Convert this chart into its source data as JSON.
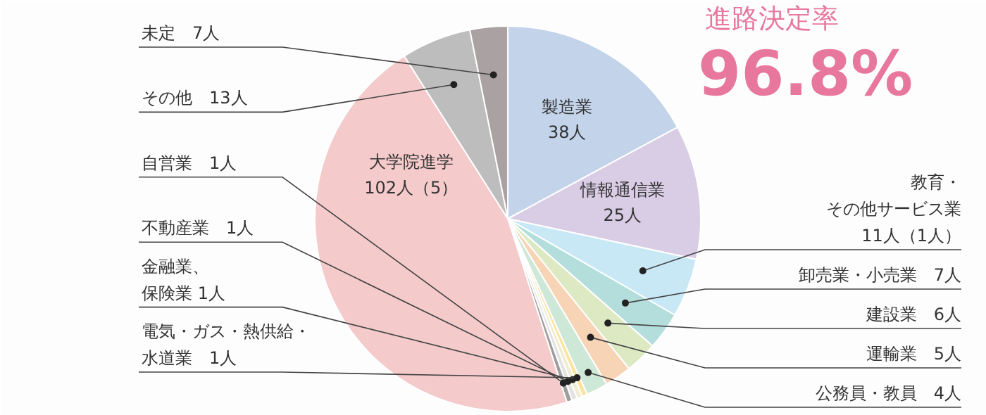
{
  "chart_data": {
    "type": "pie",
    "title": "進路決定率",
    "subtitle": "96.8%",
    "categories": [
      "製造業",
      "情報通信業",
      "教育・その他サービス業",
      "卸売業・小売業",
      "建設業",
      "運輸業",
      "公務員・教員",
      "電気・ガス・熱供給・水道業",
      "金融業、保険業",
      "不動産業",
      "自営業",
      "大学院進学",
      "その他",
      "未定"
    ],
    "values": [
      38,
      25,
      11,
      7,
      6,
      5,
      4,
      1,
      1,
      1,
      1,
      102,
      13,
      7
    ],
    "value_labels": [
      "38人",
      "25人",
      "11人（1人）",
      "7人",
      "6人",
      "5人",
      "4人",
      "1人",
      "1人",
      "1人",
      "1人",
      "102人（5）",
      "13人",
      "7人"
    ],
    "colors": [
      "#c3d3ea",
      "#d9cce5",
      "#c8e8f6",
      "#b4dedb",
      "#dde9c3",
      "#f8d4b6",
      "#cde8d6",
      "#fbe3a0",
      "#f0edd2",
      "#e3e3e3",
      "#9e9e9e",
      "#f4cacb",
      "#bdbdbd",
      "#aaa2a2"
    ]
  }
}
